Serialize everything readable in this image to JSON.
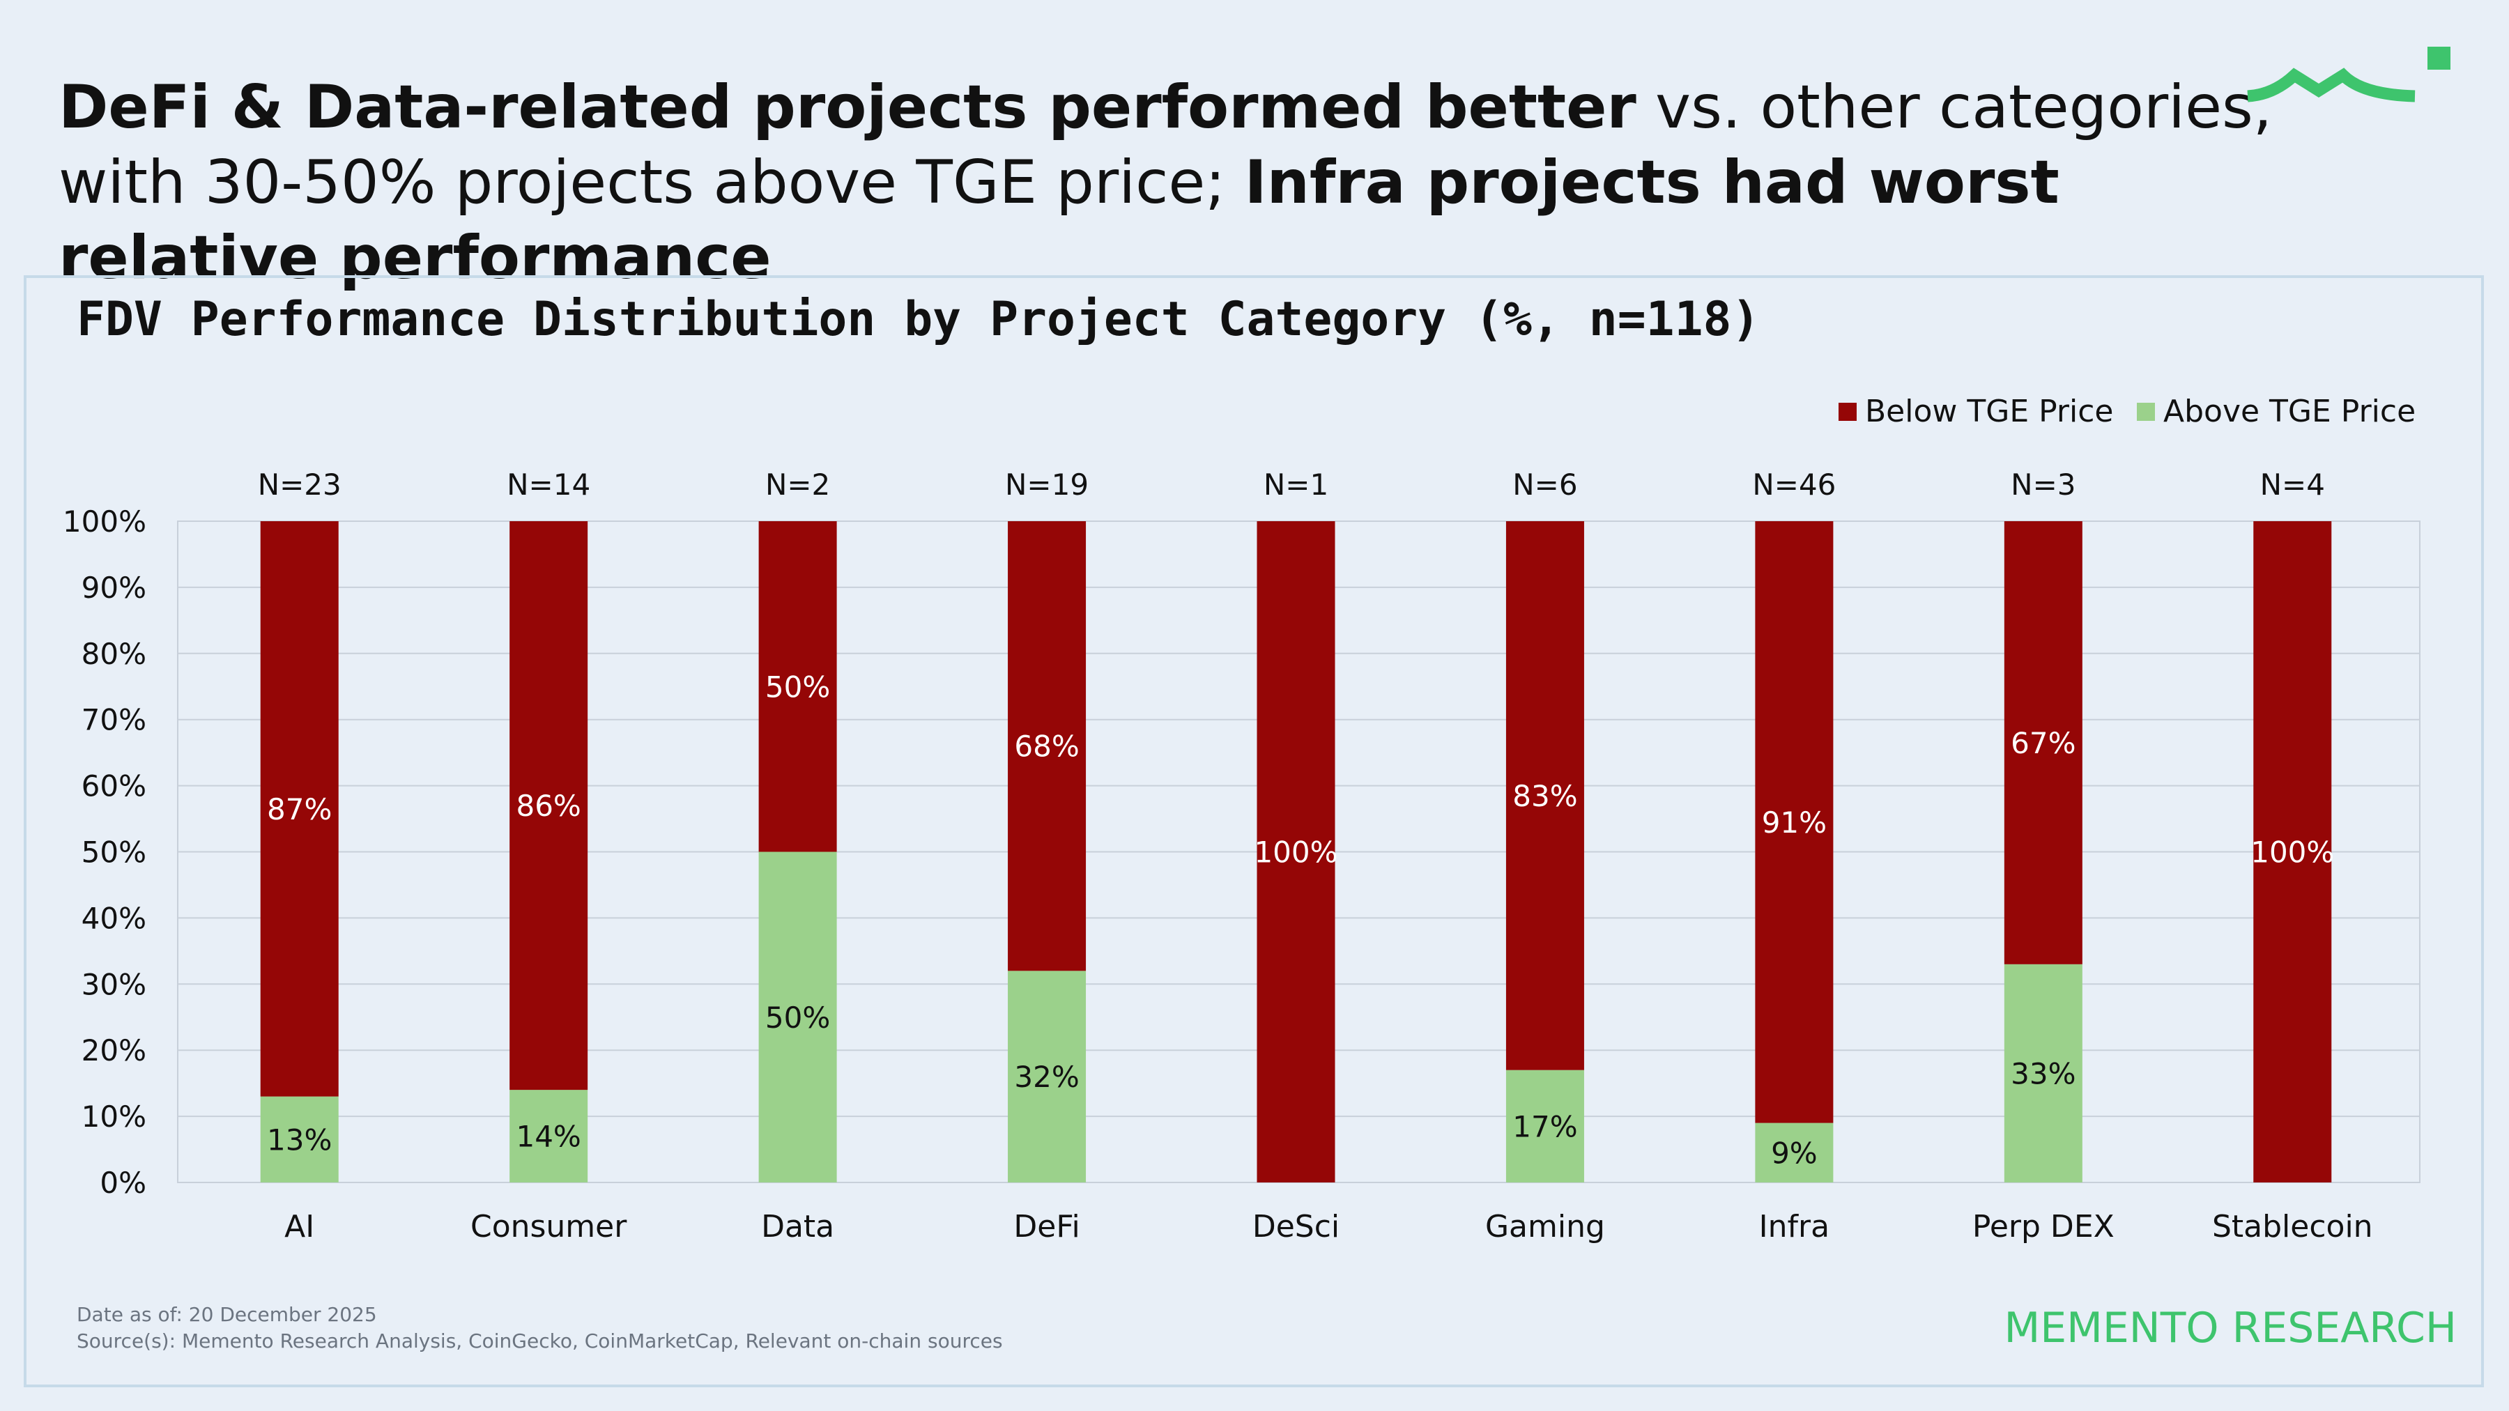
{
  "headline": {
    "part1_bold": "DeFi & Data-related projects performed better",
    "part2": " vs. other categories, with 30-50% projects above TGE price; ",
    "part3_bold": "Infra projects had worst relative performance"
  },
  "brand": {
    "name": "MEMENTO RESEARCH",
    "color": "#3ec46d"
  },
  "footer": {
    "date": "Date as of: 20 December 2025",
    "sources": "Source(s): Memento Research Analysis, CoinGecko, CoinMarketCap, Relevant on-chain sources"
  },
  "chart_data": {
    "type": "bar",
    "stacked": true,
    "title": "FDV Performance Distribution by Project Category (%, n=118)",
    "categories": [
      "AI",
      "Consumer",
      "Data",
      "DeFi",
      "DeSci",
      "Gaming",
      "Infra",
      "Perp DEX",
      "Stablecoin"
    ],
    "counts": [
      "N=23",
      "N=14",
      "N=2",
      "N=19",
      "N=1",
      "N=6",
      "N=46",
      "N=3",
      "N=4"
    ],
    "series": [
      {
        "name": "Above TGE Price",
        "color": "#9bd18b",
        "values": [
          13,
          14,
          50,
          32,
          0,
          17,
          9,
          33,
          0
        ]
      },
      {
        "name": "Below TGE Price",
        "color": "#950606",
        "values": [
          87,
          86,
          50,
          68,
          100,
          83,
          91,
          67,
          100
        ]
      }
    ],
    "legend_order": [
      "Below TGE Price",
      "Above TGE Price"
    ],
    "ylim": [
      0,
      100
    ],
    "yticks": [
      "0%",
      "10%",
      "20%",
      "30%",
      "40%",
      "50%",
      "60%",
      "70%",
      "80%",
      "90%",
      "100%"
    ],
    "grid": true,
    "legend_position": "top-right"
  }
}
